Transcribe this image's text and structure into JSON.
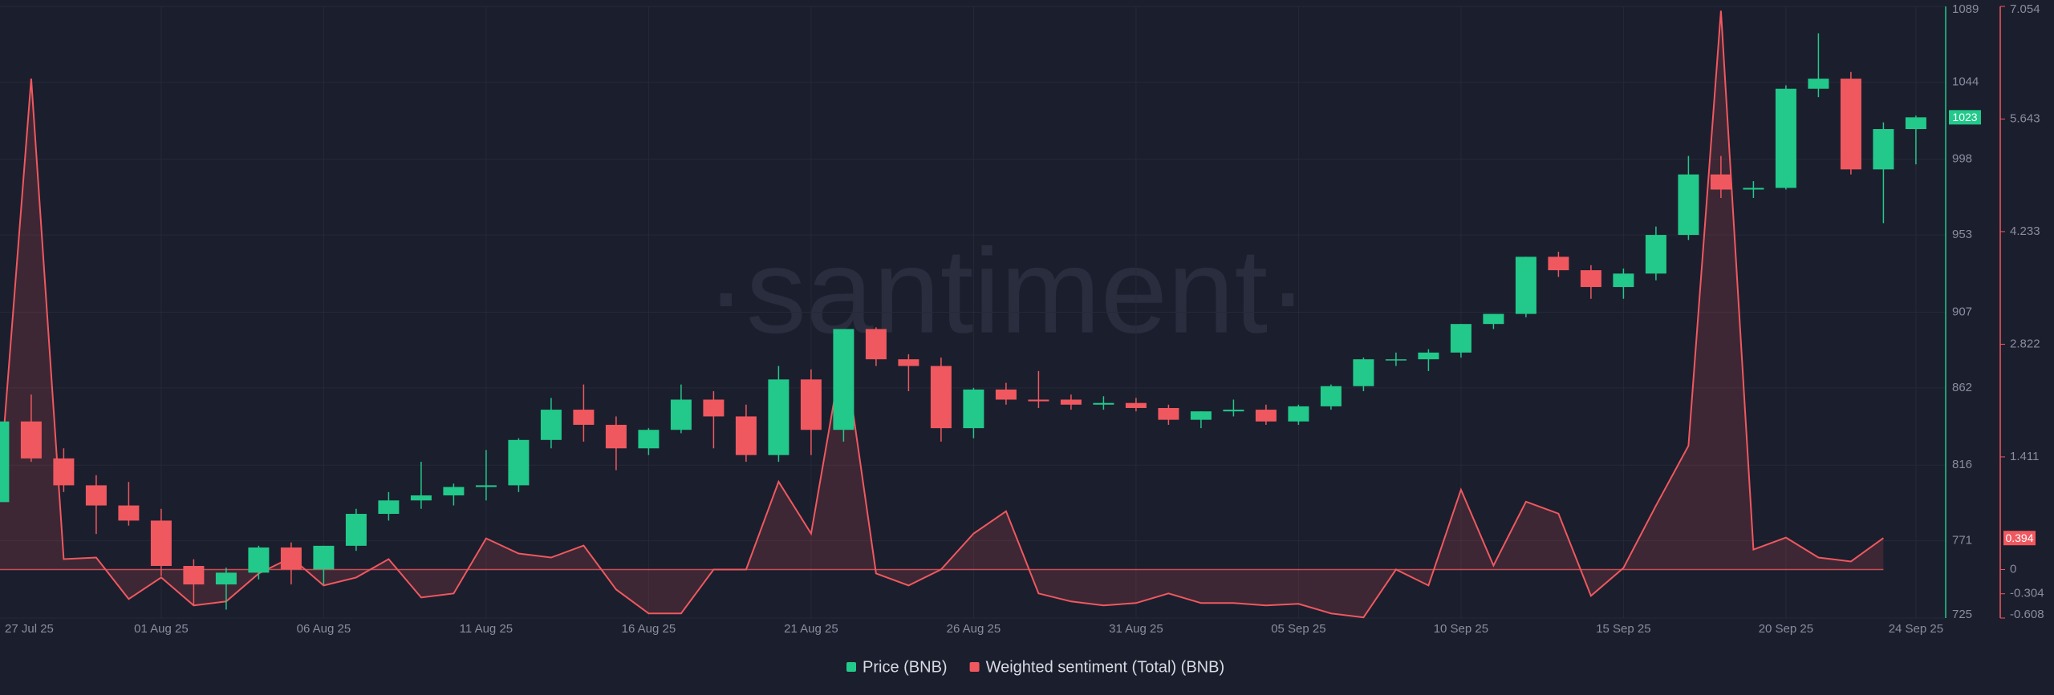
{
  "chart_data": {
    "type": "candlestick",
    "watermark": "·santiment·",
    "categories": [
      "27 Jul 25",
      null,
      null,
      null,
      null,
      "01 Aug 25",
      null,
      null,
      null,
      null,
      "06 Aug 25",
      null,
      null,
      null,
      null,
      "11 Aug 25",
      null,
      null,
      null,
      null,
      "16 Aug 25",
      null,
      null,
      null,
      null,
      "21 Aug 25",
      null,
      null,
      null,
      null,
      "26 Aug 25",
      null,
      null,
      null,
      null,
      "31 Aug 25",
      null,
      null,
      null,
      null,
      "05 Sep 25",
      null,
      null,
      null,
      null,
      "10 Sep 25",
      null,
      null,
      null,
      null,
      "15 Sep 25",
      null,
      null,
      null,
      null,
      "20 Sep 25",
      null,
      null,
      null,
      "24 Sep 25"
    ],
    "series": [
      {
        "name": "Price (BNB)",
        "type": "candlestick",
        "color": "#22c98a",
        "down_color": "#f0585f",
        "open": [
          794,
          842,
          820,
          804,
          792,
          783,
          756,
          745,
          752,
          767,
          754,
          768,
          787,
          795,
          798,
          803,
          804,
          831,
          849,
          840,
          826,
          837,
          855,
          845,
          822,
          867,
          837,
          897,
          879,
          875,
          838,
          861,
          855,
          855,
          852,
          853,
          850,
          843,
          848,
          849,
          842,
          851,
          863,
          879,
          879,
          883,
          900,
          906,
          940,
          932,
          922,
          930,
          953,
          989,
          980,
          981,
          1040,
          1046,
          992,
          1016
        ],
        "high": [
          855,
          858,
          826,
          810,
          806,
          790,
          760,
          755,
          768,
          770,
          768,
          790,
          800,
          818,
          805,
          825,
          832,
          856,
          864,
          845,
          838,
          864,
          860,
          852,
          875,
          873,
          897,
          898,
          882,
          880,
          862,
          865,
          872,
          858,
          857,
          856,
          852,
          848,
          855,
          852,
          852,
          864,
          880,
          883,
          885,
          900,
          906,
          940,
          943,
          935,
          933,
          958,
          1000,
          1000,
          985,
          1042,
          1073,
          1050,
          1020,
          1024
        ],
        "low": [
          794,
          818,
          800,
          775,
          780,
          750,
          733,
          730,
          748,
          745,
          745,
          765,
          783,
          790,
          792,
          795,
          800,
          826,
          830,
          813,
          822,
          835,
          826,
          818,
          818,
          822,
          830,
          875,
          860,
          830,
          832,
          852,
          850,
          849,
          849,
          848,
          840,
          838,
          845,
          840,
          840,
          849,
          860,
          875,
          872,
          880,
          897,
          904,
          928,
          915,
          915,
          926,
          950,
          975,
          975,
          980,
          1035,
          989,
          960,
          995
        ],
        "close": [
          842,
          820,
          804,
          792,
          783,
          756,
          745,
          752,
          767,
          754,
          768,
          787,
          795,
          798,
          803,
          804,
          831,
          849,
          840,
          826,
          837,
          855,
          845,
          822,
          867,
          837,
          897,
          879,
          875,
          838,
          861,
          855,
          854,
          852,
          853,
          850,
          843,
          848,
          849,
          842,
          851,
          863,
          879,
          879,
          883,
          900,
          906,
          940,
          932,
          922,
          930,
          953,
          989,
          980,
          981,
          1040,
          1046,
          992,
          1016,
          1023
        ]
      },
      {
        "name": "Weighted sentiment (Total) (BNB)",
        "type": "area",
        "axis": "y2",
        "color": "#f0585f",
        "values": [
          0.9,
          6.15,
          0.13,
          0.15,
          -0.37,
          -0.1,
          -0.45,
          -0.4,
          -0.05,
          0.15,
          -0.2,
          -0.1,
          0.13,
          -0.35,
          -0.3,
          0.39,
          0.2,
          0.15,
          0.3,
          -0.25,
          -0.55,
          -0.55,
          0,
          0,
          1.1,
          0.45,
          2.8,
          -0.05,
          -0.2,
          0,
          0.45,
          0.73,
          -0.3,
          -0.4,
          -0.45,
          -0.42,
          -0.3,
          -0.42,
          -0.42,
          -0.45,
          -0.43,
          -0.55,
          -0.6,
          0,
          -0.2,
          1.0,
          0.05,
          0.85,
          0.7,
          -0.33,
          0.02,
          0.8,
          1.55,
          7.0,
          0.25,
          0.4,
          0.15,
          0.1,
          0.394,
          null
        ]
      }
    ],
    "ylim": [
      725,
      1089
    ],
    "yticks": [
      725,
      771,
      816,
      862,
      907,
      953,
      998,
      1044,
      1089
    ],
    "y2lim": [
      -0.608,
      7.054
    ],
    "y2ticks": [
      -0.608,
      -0.304,
      0,
      1.411,
      2.822,
      4.233,
      5.643,
      7.054
    ],
    "price_label": 1023,
    "sentiment_label": 0.394,
    "grid": true
  }
}
